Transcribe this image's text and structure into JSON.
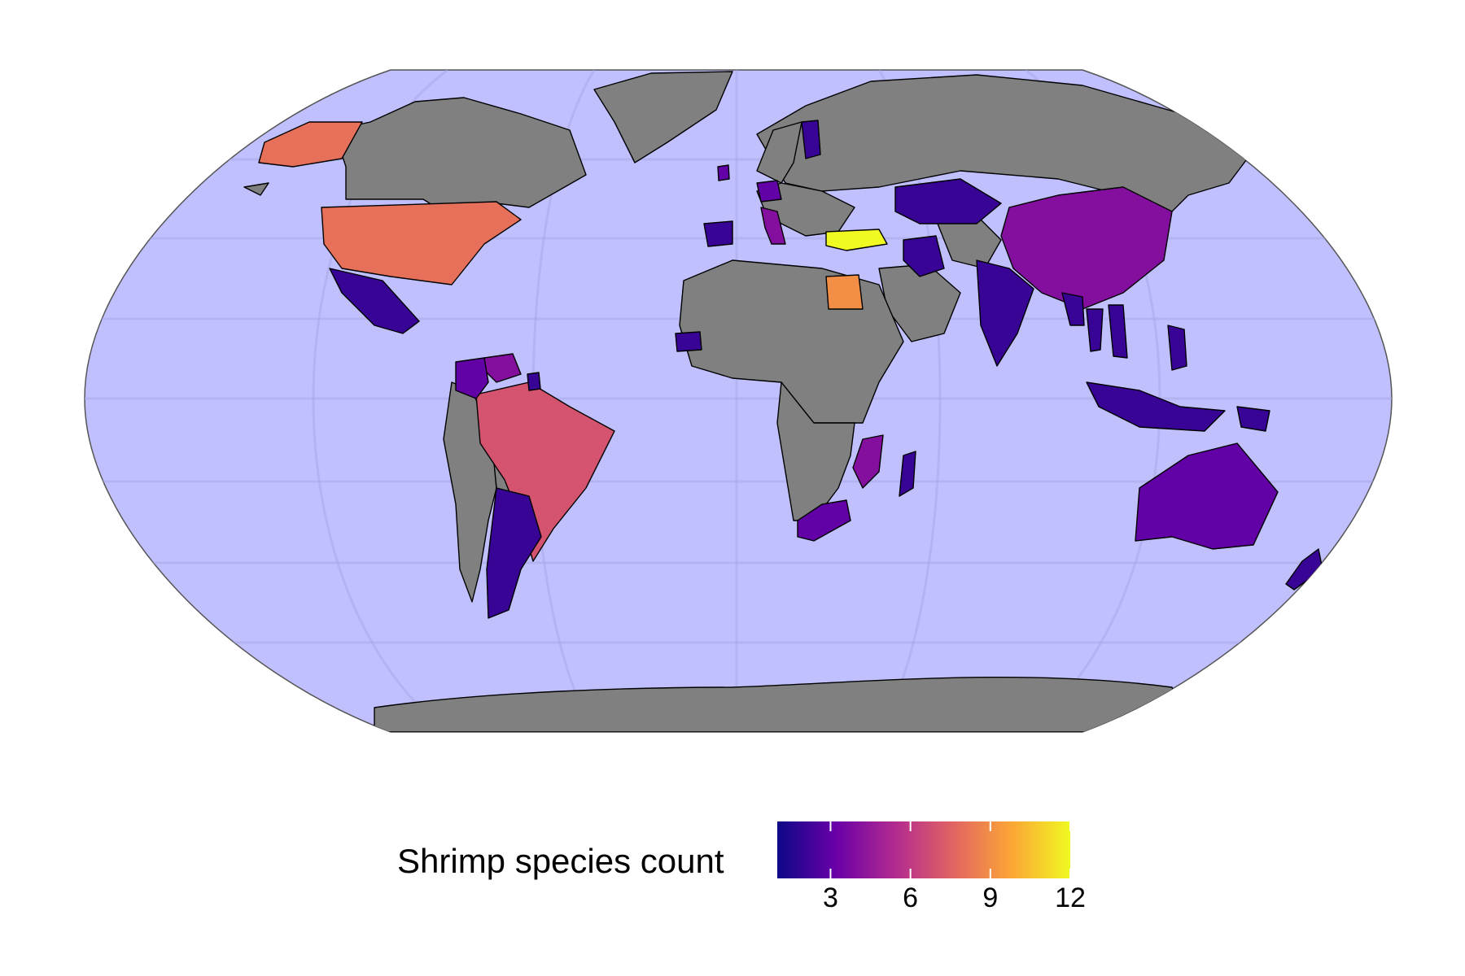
{
  "legend": {
    "title": "Shrimp species count",
    "ticks": [
      "3",
      "6",
      "9",
      "12"
    ],
    "min": 1,
    "max": 12
  },
  "colors": {
    "ocean": "#c0c0ff",
    "no_data": "#808080",
    "border": "#000000",
    "scale": [
      "#0d0887",
      "#6a00a8",
      "#b12a90",
      "#e16462",
      "#fca636",
      "#f0f921"
    ]
  },
  "chart_data": {
    "type": "choropleth",
    "projection": "Robinson",
    "value_label": "Shrimp species count",
    "scale_range": [
      1,
      12
    ],
    "regions": [
      {
        "name": "Turkey",
        "value": 12
      },
      {
        "name": "Egypt",
        "value": 9
      },
      {
        "name": "United States",
        "value": 8
      },
      {
        "name": "Brazil",
        "value": 7
      },
      {
        "name": "China",
        "value": 4
      },
      {
        "name": "Italy",
        "value": 4
      },
      {
        "name": "Venezuela",
        "value": 4
      },
      {
        "name": "Mozambique",
        "value": 4
      },
      {
        "name": "South Africa",
        "value": 3
      },
      {
        "name": "Australia",
        "value": 3
      },
      {
        "name": "Colombia",
        "value": 3
      },
      {
        "name": "Germany",
        "value": 3
      },
      {
        "name": "Mexico",
        "value": 2
      },
      {
        "name": "Argentina",
        "value": 2
      },
      {
        "name": "India",
        "value": 2
      },
      {
        "name": "Iran",
        "value": 2
      },
      {
        "name": "Kazakhstan",
        "value": 2
      },
      {
        "name": "Indonesia",
        "value": 2
      },
      {
        "name": "Spain",
        "value": 2
      },
      {
        "name": "Madagascar",
        "value": 2
      },
      {
        "name": "New Zealand",
        "value": 2
      },
      {
        "name": "Philippines",
        "value": 2
      },
      {
        "name": "Finland",
        "value": 2
      },
      {
        "name": "Thailand",
        "value": 2
      },
      {
        "name": "Vietnam",
        "value": 2
      },
      {
        "name": "Myanmar",
        "value": 2
      },
      {
        "name": "Senegal",
        "value": 2
      },
      {
        "name": "Papua New Guinea",
        "value": 2
      },
      {
        "name": "Ireland",
        "value": 3
      },
      {
        "name": "Guyana",
        "value": 2
      }
    ]
  }
}
